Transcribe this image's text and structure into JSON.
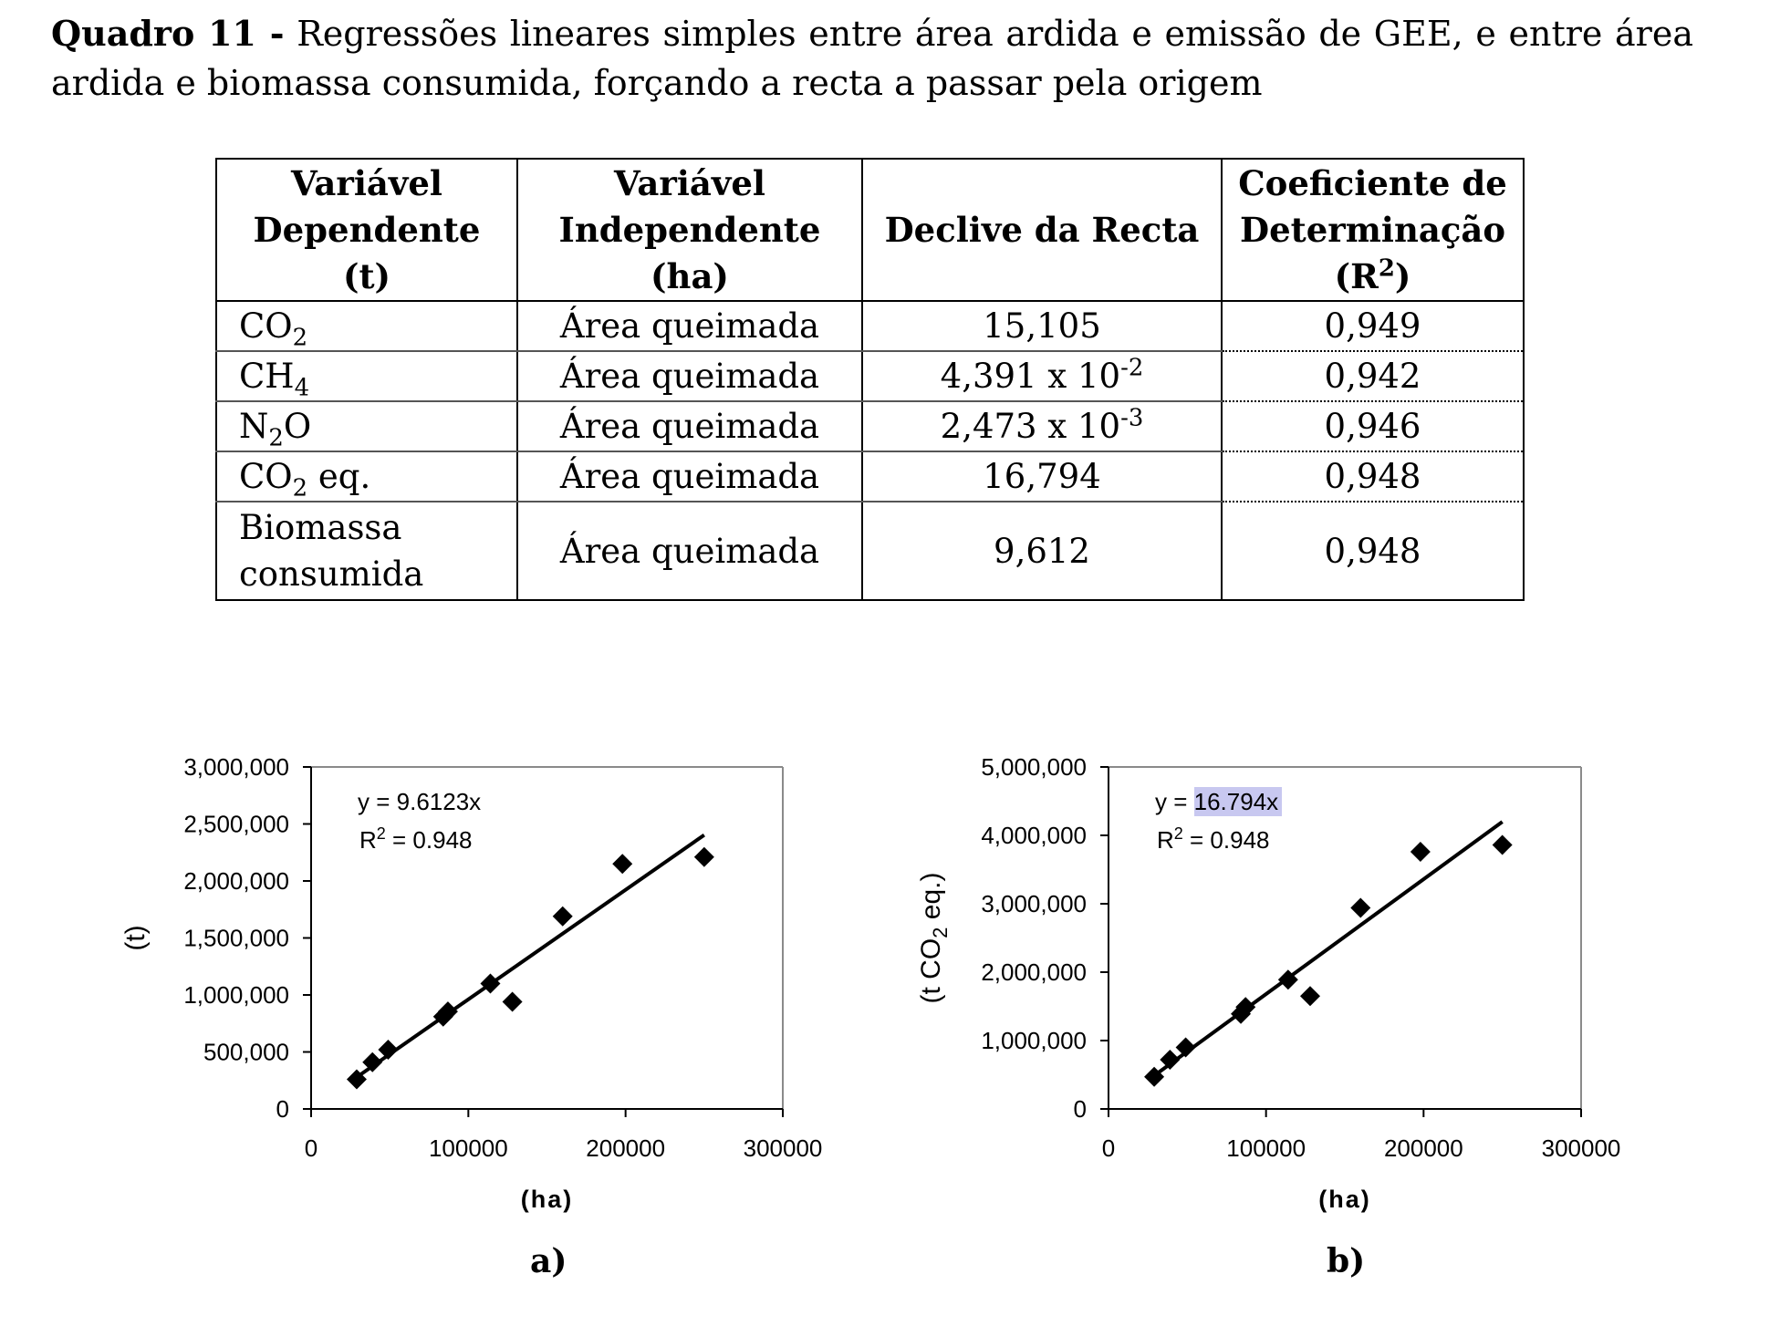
{
  "caption": {
    "label": "Quadro 11 -",
    "text": "Regressões lineares simples entre área ardida e emissão de GEE, e entre área ardida e biomassa consumida, forçando a recta a passar pela origem"
  },
  "table": {
    "headers": {
      "dep_1": "Variável",
      "dep_2": "Dependente",
      "dep_3": "(t)",
      "indep_1": "Variável",
      "indep_2": "Independente",
      "indep_3": "(ha)",
      "slope": "Declive da Recta",
      "r2_1": "Coeficiente de",
      "r2_2": "Determinação",
      "r2_3a": "(R",
      "r2_sup": "2",
      "r2_3b": ")"
    },
    "rows": [
      {
        "dep_a": "CO",
        "dep_sub": "2",
        "dep_b": "",
        "indep": "Área queimada",
        "slope_a": "15,105",
        "slope_sup": "",
        "r2": "0,949"
      },
      {
        "dep_a": "CH",
        "dep_sub": "4",
        "dep_b": "",
        "indep": "Área queimada",
        "slope_a": "4,391 x 10",
        "slope_sup": "-2",
        "r2": "0,942"
      },
      {
        "dep_a": "N",
        "dep_sub": "2",
        "dep_b": "O",
        "indep": "Área queimada",
        "slope_a": "2,473 x 10",
        "slope_sup": "-3",
        "r2": "0,946"
      },
      {
        "dep_a": "CO",
        "dep_sub": "2",
        "dep_b": " eq.",
        "indep": "Área queimada",
        "slope_a": "16,794",
        "slope_sup": "",
        "r2": "0,948"
      }
    ],
    "last_row": {
      "dep_1": "Biomassa",
      "dep_2": "consumida",
      "indep": "Área queimada",
      "slope": "9,612",
      "r2": "0,948"
    }
  },
  "chart_data": [
    {
      "type": "scatter",
      "panel_label": "a)",
      "xlabel": "(ha)",
      "ylabel": "(t)",
      "ylabel_sub": "",
      "ylabel_tail": "",
      "xlim": [
        0,
        300000
      ],
      "ylim": [
        0,
        3000000
      ],
      "x_ticks": [
        "0",
        "100000",
        "200000",
        "300000"
      ],
      "x_tick_values": [
        0,
        100000,
        200000,
        300000
      ],
      "y_ticks": [
        "0",
        "500,000",
        "1,000,000",
        "1,500,000",
        "2,000,000",
        "2,500,000",
        "3,000,000"
      ],
      "y_tick_values": [
        0,
        500000,
        1000000,
        1500000,
        2000000,
        2500000,
        3000000
      ],
      "grid": false,
      "trendline": {
        "slope": 9.6123,
        "x_range": [
          28000,
          250000
        ]
      },
      "equation": "y = 9.6123x",
      "r2_prefix": "R",
      "r2_sup": "2",
      "r2_value": " = 0.948",
      "highlight_equation": false,
      "points": [
        {
          "x": 29000,
          "y": 260000
        },
        {
          "x": 39000,
          "y": 410000
        },
        {
          "x": 49000,
          "y": 520000
        },
        {
          "x": 84000,
          "y": 810000
        },
        {
          "x": 87000,
          "y": 855000
        },
        {
          "x": 114000,
          "y": 1100000
        },
        {
          "x": 128000,
          "y": 940000
        },
        {
          "x": 160000,
          "y": 1690000
        },
        {
          "x": 198000,
          "y": 2150000
        },
        {
          "x": 250000,
          "y": 2210000
        }
      ],
      "marker_color": "#000000"
    },
    {
      "type": "scatter",
      "panel_label": "b)",
      "xlabel": "(ha)",
      "ylabel": "(t CO",
      "ylabel_sub": "2",
      "ylabel_tail": " eq.)",
      "xlim": [
        0,
        300000
      ],
      "ylim": [
        0,
        5000000
      ],
      "x_ticks": [
        "0",
        "100000",
        "200000",
        "300000"
      ],
      "x_tick_values": [
        0,
        100000,
        200000,
        300000
      ],
      "y_ticks": [
        "0",
        "1,000,000",
        "2,000,000",
        "3,000,000",
        "4,000,000",
        "5,000,000"
      ],
      "y_tick_values": [
        0,
        1000000,
        2000000,
        3000000,
        4000000,
        5000000
      ],
      "grid": false,
      "trendline": {
        "slope": 16.794,
        "x_range": [
          28000,
          250000
        ]
      },
      "equation_prefix": "y = ",
      "equation_value": "16.794x",
      "r2_prefix": "R",
      "r2_sup": "2",
      "r2_value": " = 0.948",
      "highlight_equation": true,
      "highlight_color": "#c8c8f0",
      "points": [
        {
          "x": 29000,
          "y": 470000
        },
        {
          "x": 39000,
          "y": 720000
        },
        {
          "x": 49000,
          "y": 900000
        },
        {
          "x": 84000,
          "y": 1390000
        },
        {
          "x": 87000,
          "y": 1490000
        },
        {
          "x": 114000,
          "y": 1890000
        },
        {
          "x": 128000,
          "y": 1650000
        },
        {
          "x": 160000,
          "y": 2940000
        },
        {
          "x": 198000,
          "y": 3760000
        },
        {
          "x": 250000,
          "y": 3860000
        }
      ],
      "marker_color": "#000000"
    }
  ]
}
